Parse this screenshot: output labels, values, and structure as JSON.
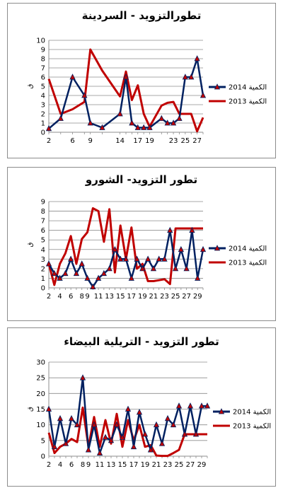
{
  "chart_data": [
    {
      "type": "line",
      "title": "تطورالتزويد - السردينة",
      "ylabel": "ق",
      "ylim": [
        0,
        10
      ],
      "yticks": [
        0,
        1,
        2,
        3,
        4,
        5,
        6,
        7,
        8,
        9,
        10
      ],
      "xticks": [
        2,
        6,
        9,
        14,
        17,
        19,
        23,
        25,
        27
      ],
      "x": [
        2,
        4,
        6,
        8,
        9,
        11,
        14,
        15,
        16,
        17,
        18,
        19,
        21,
        22,
        23,
        24,
        25,
        26,
        27,
        28
      ],
      "legend_position": "right",
      "grid": true,
      "series": [
        {
          "name": "2014 الكمية",
          "color": "#002060",
          "marker": "triangle",
          "values": [
            0.4,
            1.5,
            6,
            4,
            1,
            0.5,
            2,
            6,
            1,
            0.5,
            0.5,
            0.5,
            1.5,
            1,
            1,
            1.5,
            6,
            6,
            8,
            4
          ]
        },
        {
          "name": "2013 الكمية",
          "color": "#c00000",
          "marker": "none",
          "values": [
            5.8,
            2,
            2.5,
            3.3,
            9,
            6.7,
            3.9,
            6.6,
            3.5,
            5.1,
            2,
            0.6,
            2.9,
            3.2,
            3.3,
            2,
            2,
            2,
            0.1,
            1.6
          ]
        }
      ]
    },
    {
      "type": "line",
      "title": "تطور التزويد- الشورو",
      "ylabel": "ق",
      "ylim": [
        0,
        9
      ],
      "yticks": [
        0,
        1,
        2,
        3,
        4,
        5,
        6,
        7,
        8,
        9
      ],
      "xticks": [
        2,
        4,
        6,
        8,
        9,
        11,
        13,
        15,
        17,
        19,
        21,
        23,
        25,
        27,
        29
      ],
      "x": [
        2,
        3,
        4,
        5,
        6,
        7,
        8,
        9,
        10,
        11,
        12,
        13,
        14,
        15,
        16,
        17,
        18,
        19,
        20,
        21,
        22,
        23,
        24,
        25,
        26,
        27,
        28,
        29,
        30
      ],
      "legend_position": "right",
      "grid": true,
      "series": [
        {
          "name": "2014 الكمية",
          "color": "#002060",
          "marker": "triangle",
          "values": [
            2.5,
            1.5,
            1,
            1.5,
            3,
            1.5,
            2.5,
            1,
            0.1,
            1,
            1.5,
            2,
            4,
            3,
            3,
            1,
            3,
            2,
            3,
            2,
            3,
            3,
            6,
            2,
            4,
            2,
            6,
            1,
            4
          ]
        },
        {
          "name": "2013 الكمية",
          "color": "#c00000",
          "marker": "none",
          "values": [
            2.5,
            0.3,
            2.5,
            3.6,
            5.4,
            2.5,
            5.1,
            5.8,
            8.3,
            8,
            4.8,
            8.2,
            1.6,
            6.5,
            3,
            6.3,
            2,
            2.5,
            0.7,
            0.7,
            0.8,
            0.9,
            0.4,
            6.2,
            6.2,
            6.2,
            6.2,
            6.2,
            6.2
          ]
        }
      ]
    },
    {
      "type": "line",
      "title": "تطور التزويد - التريلية البيضاء",
      "ylabel": "ق",
      "ylim": [
        0,
        30
      ],
      "yticks": [
        0,
        5,
        10,
        15,
        20,
        25,
        30
      ],
      "xticks": [
        2,
        4,
        6,
        8,
        9,
        11,
        13,
        15,
        17,
        19,
        21,
        23,
        25,
        27,
        29
      ],
      "x": [
        2,
        3,
        4,
        5,
        6,
        7,
        8,
        9,
        10,
        11,
        12,
        13,
        14,
        15,
        16,
        17,
        18,
        19,
        20,
        21,
        22,
        23,
        24,
        25,
        26,
        27,
        28,
        29,
        30
      ],
      "legend_position": "right",
      "grid": true,
      "series": [
        {
          "name": "2014 الكمية",
          "color": "#002060",
          "marker": "triangle",
          "values": [
            15,
            3,
            12,
            4,
            12,
            10,
            25,
            2,
            10,
            1,
            6,
            5,
            10,
            6,
            15,
            3,
            14,
            7,
            2,
            10,
            4,
            12,
            10,
            16,
            7,
            16,
            7,
            16,
            16
          ]
        },
        {
          "name": "2013 الكمية",
          "color": "#c00000",
          "marker": "none",
          "values": [
            7.5,
            1,
            3,
            4,
            5.5,
            4.5,
            15.5,
            3,
            12.5,
            3,
            11.5,
            4,
            13.5,
            3,
            11.5,
            5,
            10,
            3,
            3.5,
            0.2,
            0.1,
            0.1,
            1,
            2,
            7,
            7,
            7,
            7,
            7
          ]
        }
      ]
    }
  ]
}
